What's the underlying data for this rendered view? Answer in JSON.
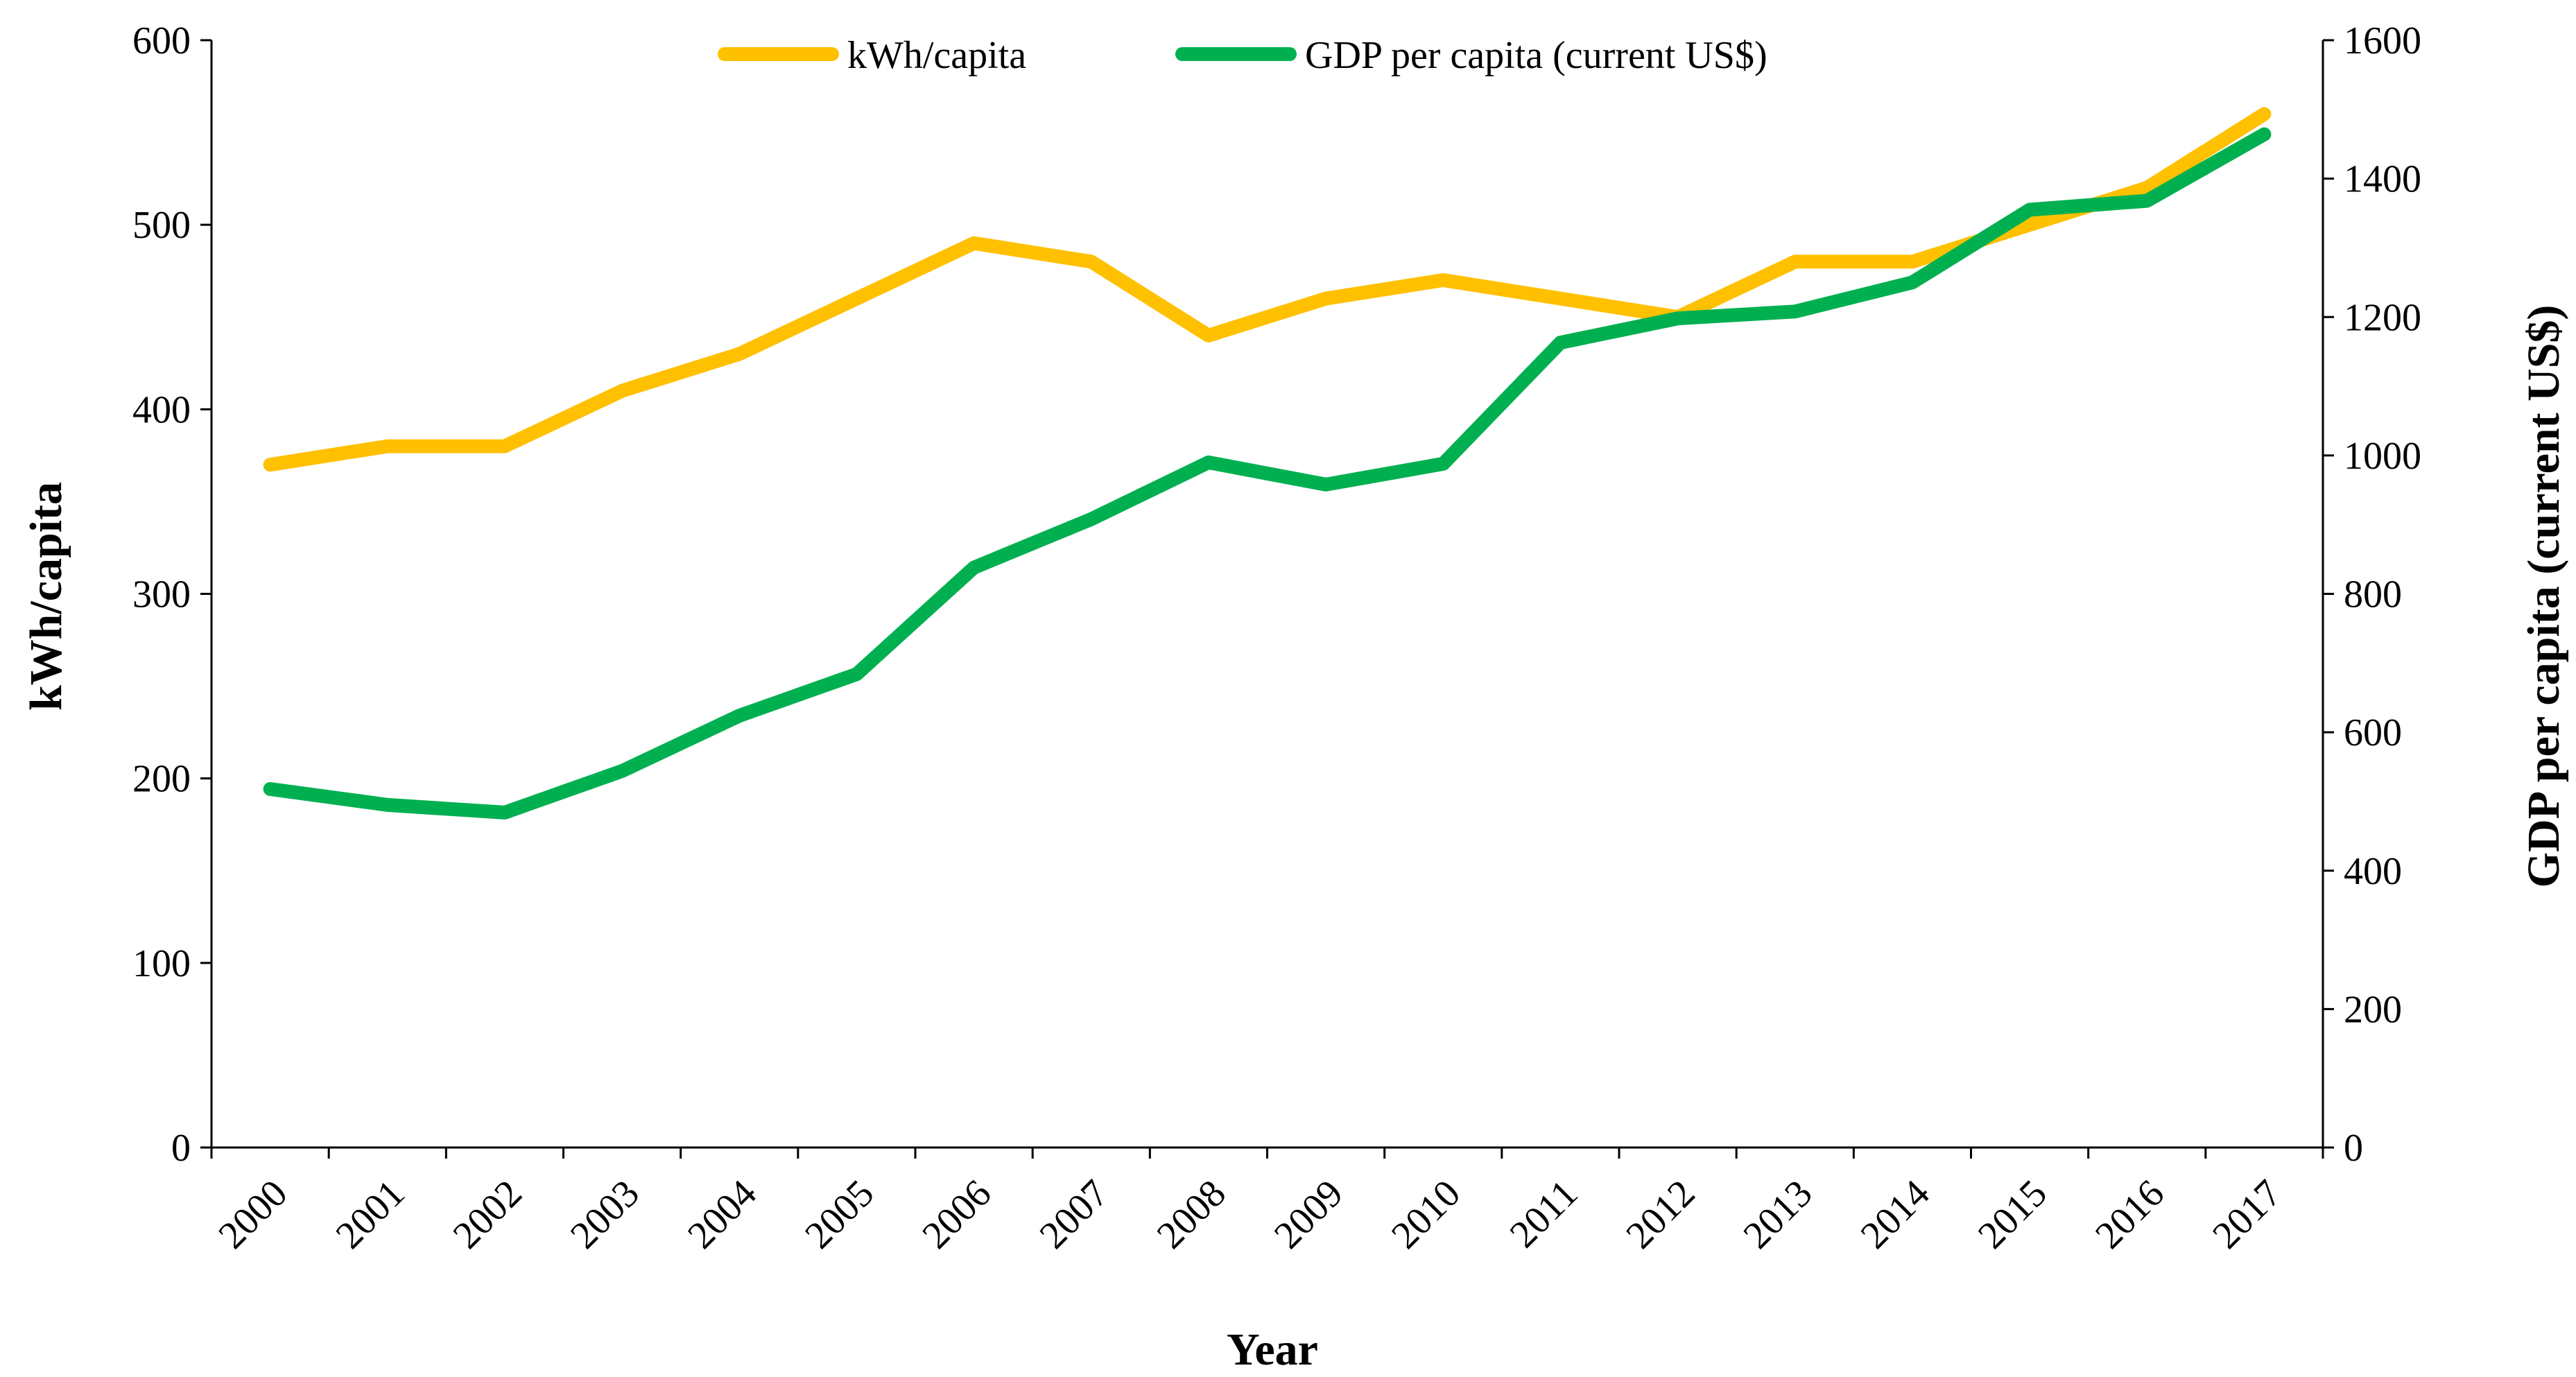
{
  "chart_data": {
    "type": "line",
    "title": "",
    "xlabel": "Year",
    "ylabel_left": "kWh/capita",
    "ylabel_right": "GDP per capita (current US$)",
    "x": [
      "2000",
      "2001",
      "2002",
      "2003",
      "2004",
      "2005",
      "2006",
      "2007",
      "2008",
      "2009",
      "2010",
      "2011",
      "2012",
      "2013",
      "2014",
      "2015",
      "2016",
      "2017"
    ],
    "ylim_left": [
      0,
      600
    ],
    "yticks_left": [
      "0",
      "100",
      "200",
      "300",
      "400",
      "500",
      "600"
    ],
    "ylim_right": [
      0,
      1600
    ],
    "yticks_right": [
      "0",
      "200",
      "400",
      "600",
      "800",
      "1000",
      "1200",
      "1400",
      "1600"
    ],
    "grid": false,
    "legend_position": "top",
    "series": [
      {
        "name": "kWh/capita",
        "axis": "left",
        "color": "#FFC000",
        "values": [
          370,
          380,
          380,
          410,
          430,
          460,
          490,
          480,
          440,
          460,
          470,
          460,
          450,
          480,
          480,
          500,
          520,
          560
        ]
      },
      {
        "name": "GDP per capita (current US$)",
        "axis": "right",
        "color": "#00B050",
        "values": [
          518,
          495,
          484,
          544,
          624,
          684,
          838,
          908,
          990,
          958,
          988,
          1163,
          1198,
          1208,
          1250,
          1355,
          1368,
          1464
        ]
      }
    ]
  }
}
